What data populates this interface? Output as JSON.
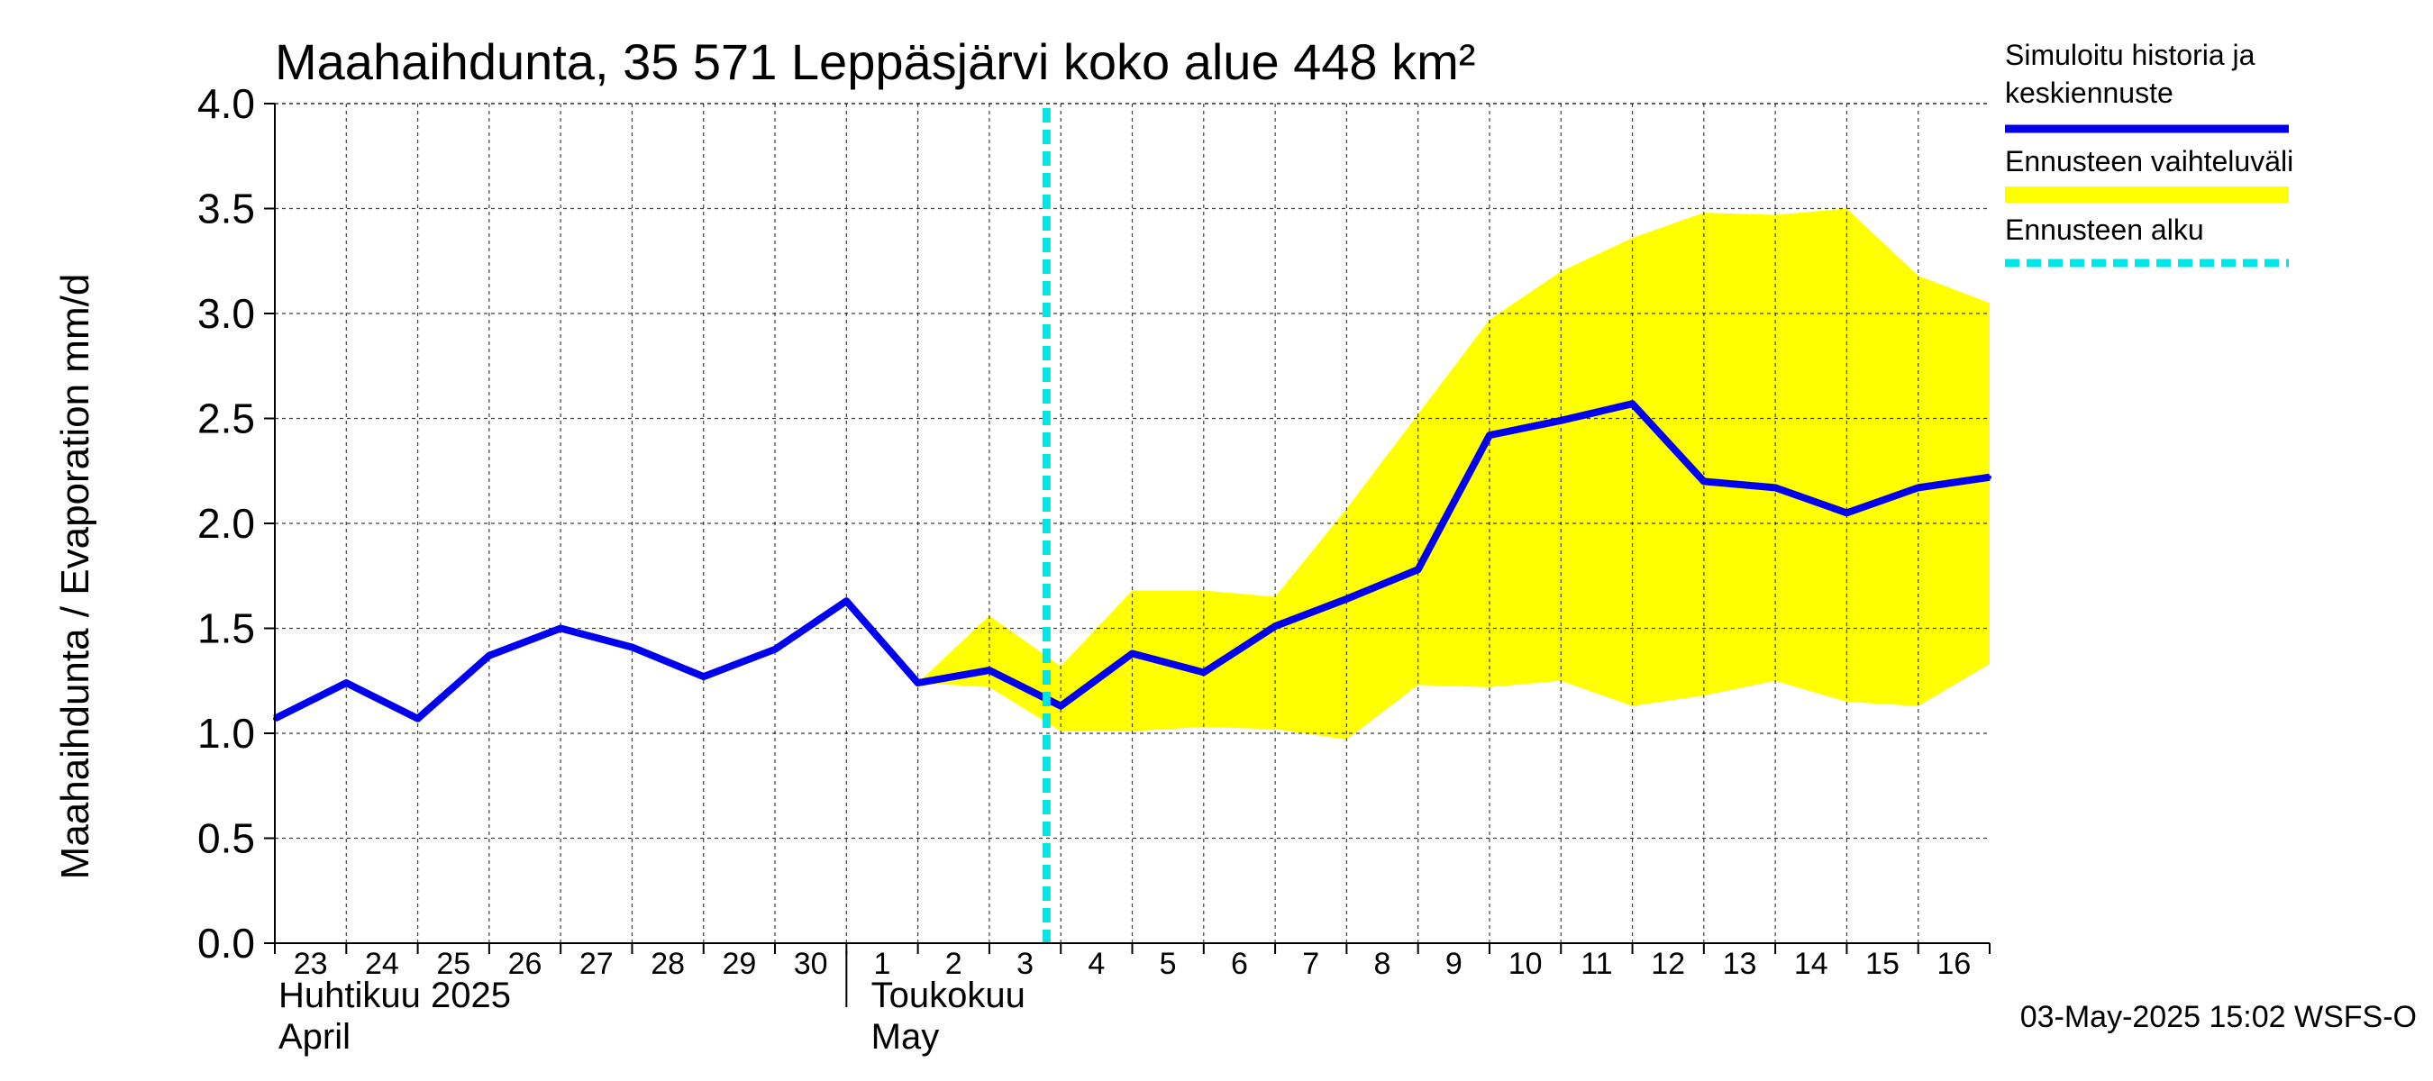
{
  "chart_data": {
    "type": "line",
    "title": "Maahaihdunta, 35 571 Leppäsjärvi koko alue 448 km²",
    "ylabel": "Maahaihdunta / Evaporation   mm/d",
    "ylim": [
      0,
      4
    ],
    "yticks": [
      "0.0",
      "0.5",
      "1.0",
      "1.5",
      "2.0",
      "2.5",
      "3.0",
      "3.5",
      "4.0"
    ],
    "grid": true,
    "x_ticks": [
      "23",
      "24",
      "25",
      "26",
      "27",
      "28",
      "29",
      "30",
      "1",
      "2",
      "3",
      "4",
      "5",
      "6",
      "7",
      "8",
      "9",
      "10",
      "11",
      "12",
      "13",
      "14",
      "15",
      "16"
    ],
    "month_labels": [
      {
        "line1": "Huhtikuu  2025",
        "line2": "April"
      },
      {
        "line1": "Toukokuu",
        "line2": "May"
      }
    ],
    "forecast_start_day": 10.8,
    "series": [
      {
        "name": "Simuloitu historia ja keskiennuste",
        "color": "#0000ee",
        "x": [
          0,
          1,
          2,
          3,
          4,
          5,
          6,
          7,
          8,
          9,
          10,
          11,
          12,
          13,
          14,
          15,
          16,
          17,
          18,
          19,
          20,
          21,
          22,
          23,
          24
        ],
        "values": [
          1.07,
          1.24,
          1.07,
          1.37,
          1.5,
          1.41,
          1.27,
          1.4,
          1.63,
          1.24,
          1.3,
          1.13,
          1.38,
          1.29,
          1.51,
          1.64,
          1.78,
          2.42,
          2.49,
          2.57,
          2.2,
          2.17,
          2.05,
          2.17,
          2.22
        ]
      },
      {
        "name": "Ennusteen vaihteluväli",
        "type": "band",
        "color": "#ffff00",
        "x": [
          9,
          10,
          11,
          12,
          13,
          14,
          15,
          16,
          17,
          18,
          19,
          20,
          21,
          22,
          23,
          24
        ],
        "upper": [
          1.24,
          1.56,
          1.32,
          1.68,
          1.68,
          1.65,
          2.07,
          2.52,
          2.97,
          3.2,
          3.36,
          3.48,
          3.47,
          3.5,
          3.18,
          3.05
        ],
        "lower": [
          1.24,
          1.22,
          1.01,
          1.01,
          1.03,
          1.02,
          0.97,
          1.23,
          1.22,
          1.25,
          1.13,
          1.18,
          1.25,
          1.15,
          1.13,
          1.33
        ]
      }
    ]
  },
  "legend": {
    "items": [
      {
        "label_lines": [
          "Simuloitu historia ja",
          "keskiennuste"
        ],
        "color": "#0000ee",
        "style": "solid"
      },
      {
        "label_lines": [
          "Ennusteen vaihteluväli"
        ],
        "color": "#ffff00",
        "style": "band"
      },
      {
        "label_lines": [
          "Ennusteen alku"
        ],
        "color": "#00e5e5",
        "style": "dashed"
      }
    ]
  },
  "footer": "03-May-2025 15:02 WSFS-O"
}
